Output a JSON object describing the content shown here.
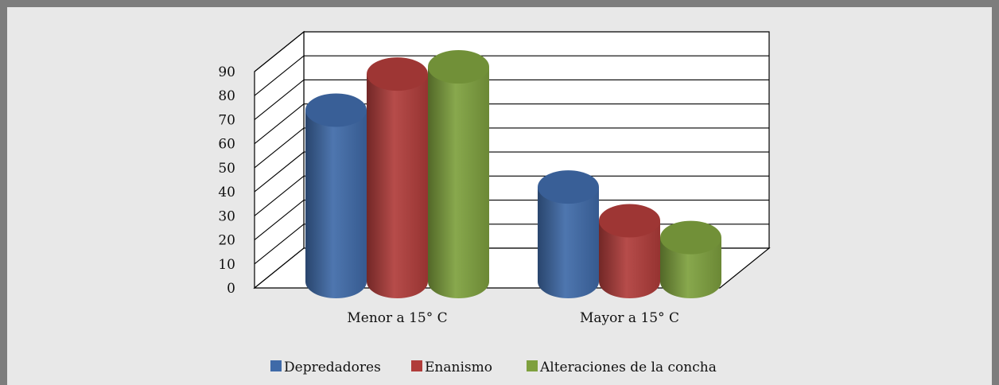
{
  "chart_data": {
    "type": "bar",
    "categories": [
      "Menor a 15° C",
      "Mayor a 15° C"
    ],
    "series": [
      {
        "name": "Depredadores",
        "values": [
          70,
          38
        ],
        "color": "#3f6aa8"
      },
      {
        "name": "Enanismo",
        "values": [
          85,
          24
        ],
        "color": "#b03c3a"
      },
      {
        "name": "Alteraciones de la concha",
        "values": [
          88,
          17
        ],
        "color": "#7ea03e"
      }
    ],
    "yticks": [
      "0",
      "10",
      "20",
      "30",
      "40",
      "50",
      "60",
      "70",
      "80",
      "90"
    ],
    "ylim": [
      0,
      90
    ],
    "gridlines": true,
    "legend_position": "bottom",
    "style": "3d-cylinder"
  }
}
